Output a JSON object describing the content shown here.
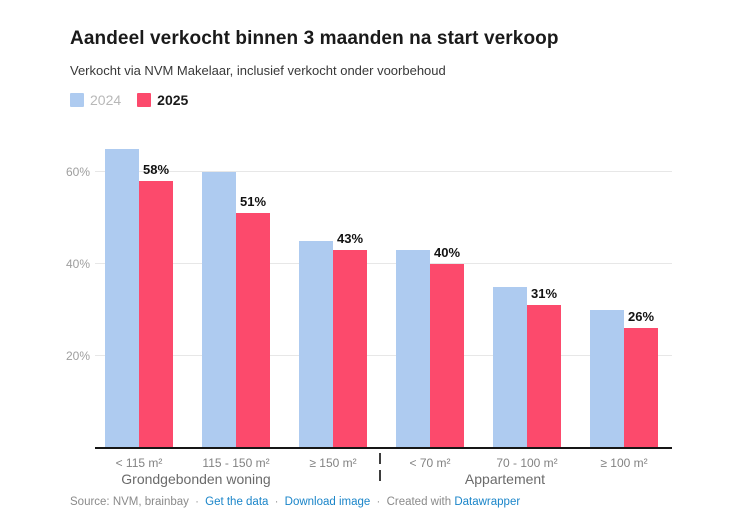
{
  "header": {
    "title": "Aandeel verkocht binnen 3 maanden na start verkoop",
    "subtitle": "Verkocht via NVM Makelaar, inclusief verkocht onder voorbehoud"
  },
  "legend": {
    "items": [
      {
        "label": "2024",
        "color": "#aecbf0",
        "text_color": "#b8b8b8"
      },
      {
        "label": "2025",
        "color": "#fc4a6c",
        "text_color": "#1a1a1a"
      }
    ]
  },
  "chart_data": {
    "type": "bar",
    "categories": [
      "< 115 m²",
      "115 - 150 m²",
      "≥ 150 m²",
      "< 70 m²",
      "70 - 100 m²",
      "≥ 100 m²"
    ],
    "series": [
      {
        "name": "2024",
        "color": "#aecbf0",
        "values": [
          65,
          60,
          45,
          43,
          35,
          30
        ],
        "show_labels": false
      },
      {
        "name": "2025",
        "color": "#fc4a6c",
        "values": [
          58,
          51,
          43,
          40,
          31,
          26
        ],
        "show_labels": true,
        "data_labels": [
          "58%",
          "51%",
          "43%",
          "40%",
          "31%",
          "26%"
        ]
      }
    ],
    "group_labels": [
      {
        "label": "Grondgebonden woning",
        "categories": [
          0,
          1,
          2
        ]
      },
      {
        "label": "Appartement",
        "categories": [
          3,
          4,
          5
        ]
      }
    ],
    "separator_after_category": 2,
    "yticks": [
      {
        "value": 20,
        "label": "20%"
      },
      {
        "value": 40,
        "label": "40%"
      },
      {
        "value": 60,
        "label": "60%"
      }
    ],
    "ylim": [
      0,
      69.5
    ],
    "unit": "%",
    "grid": "horizontal",
    "legend_position": "top-left"
  },
  "footer": {
    "source_text": "Source: NVM, brainbay",
    "separator": "·",
    "links": [
      {
        "label": "Get the data"
      },
      {
        "label": "Download image"
      }
    ],
    "created_prefix": "Created with",
    "created_link": "Datawrapper"
  }
}
